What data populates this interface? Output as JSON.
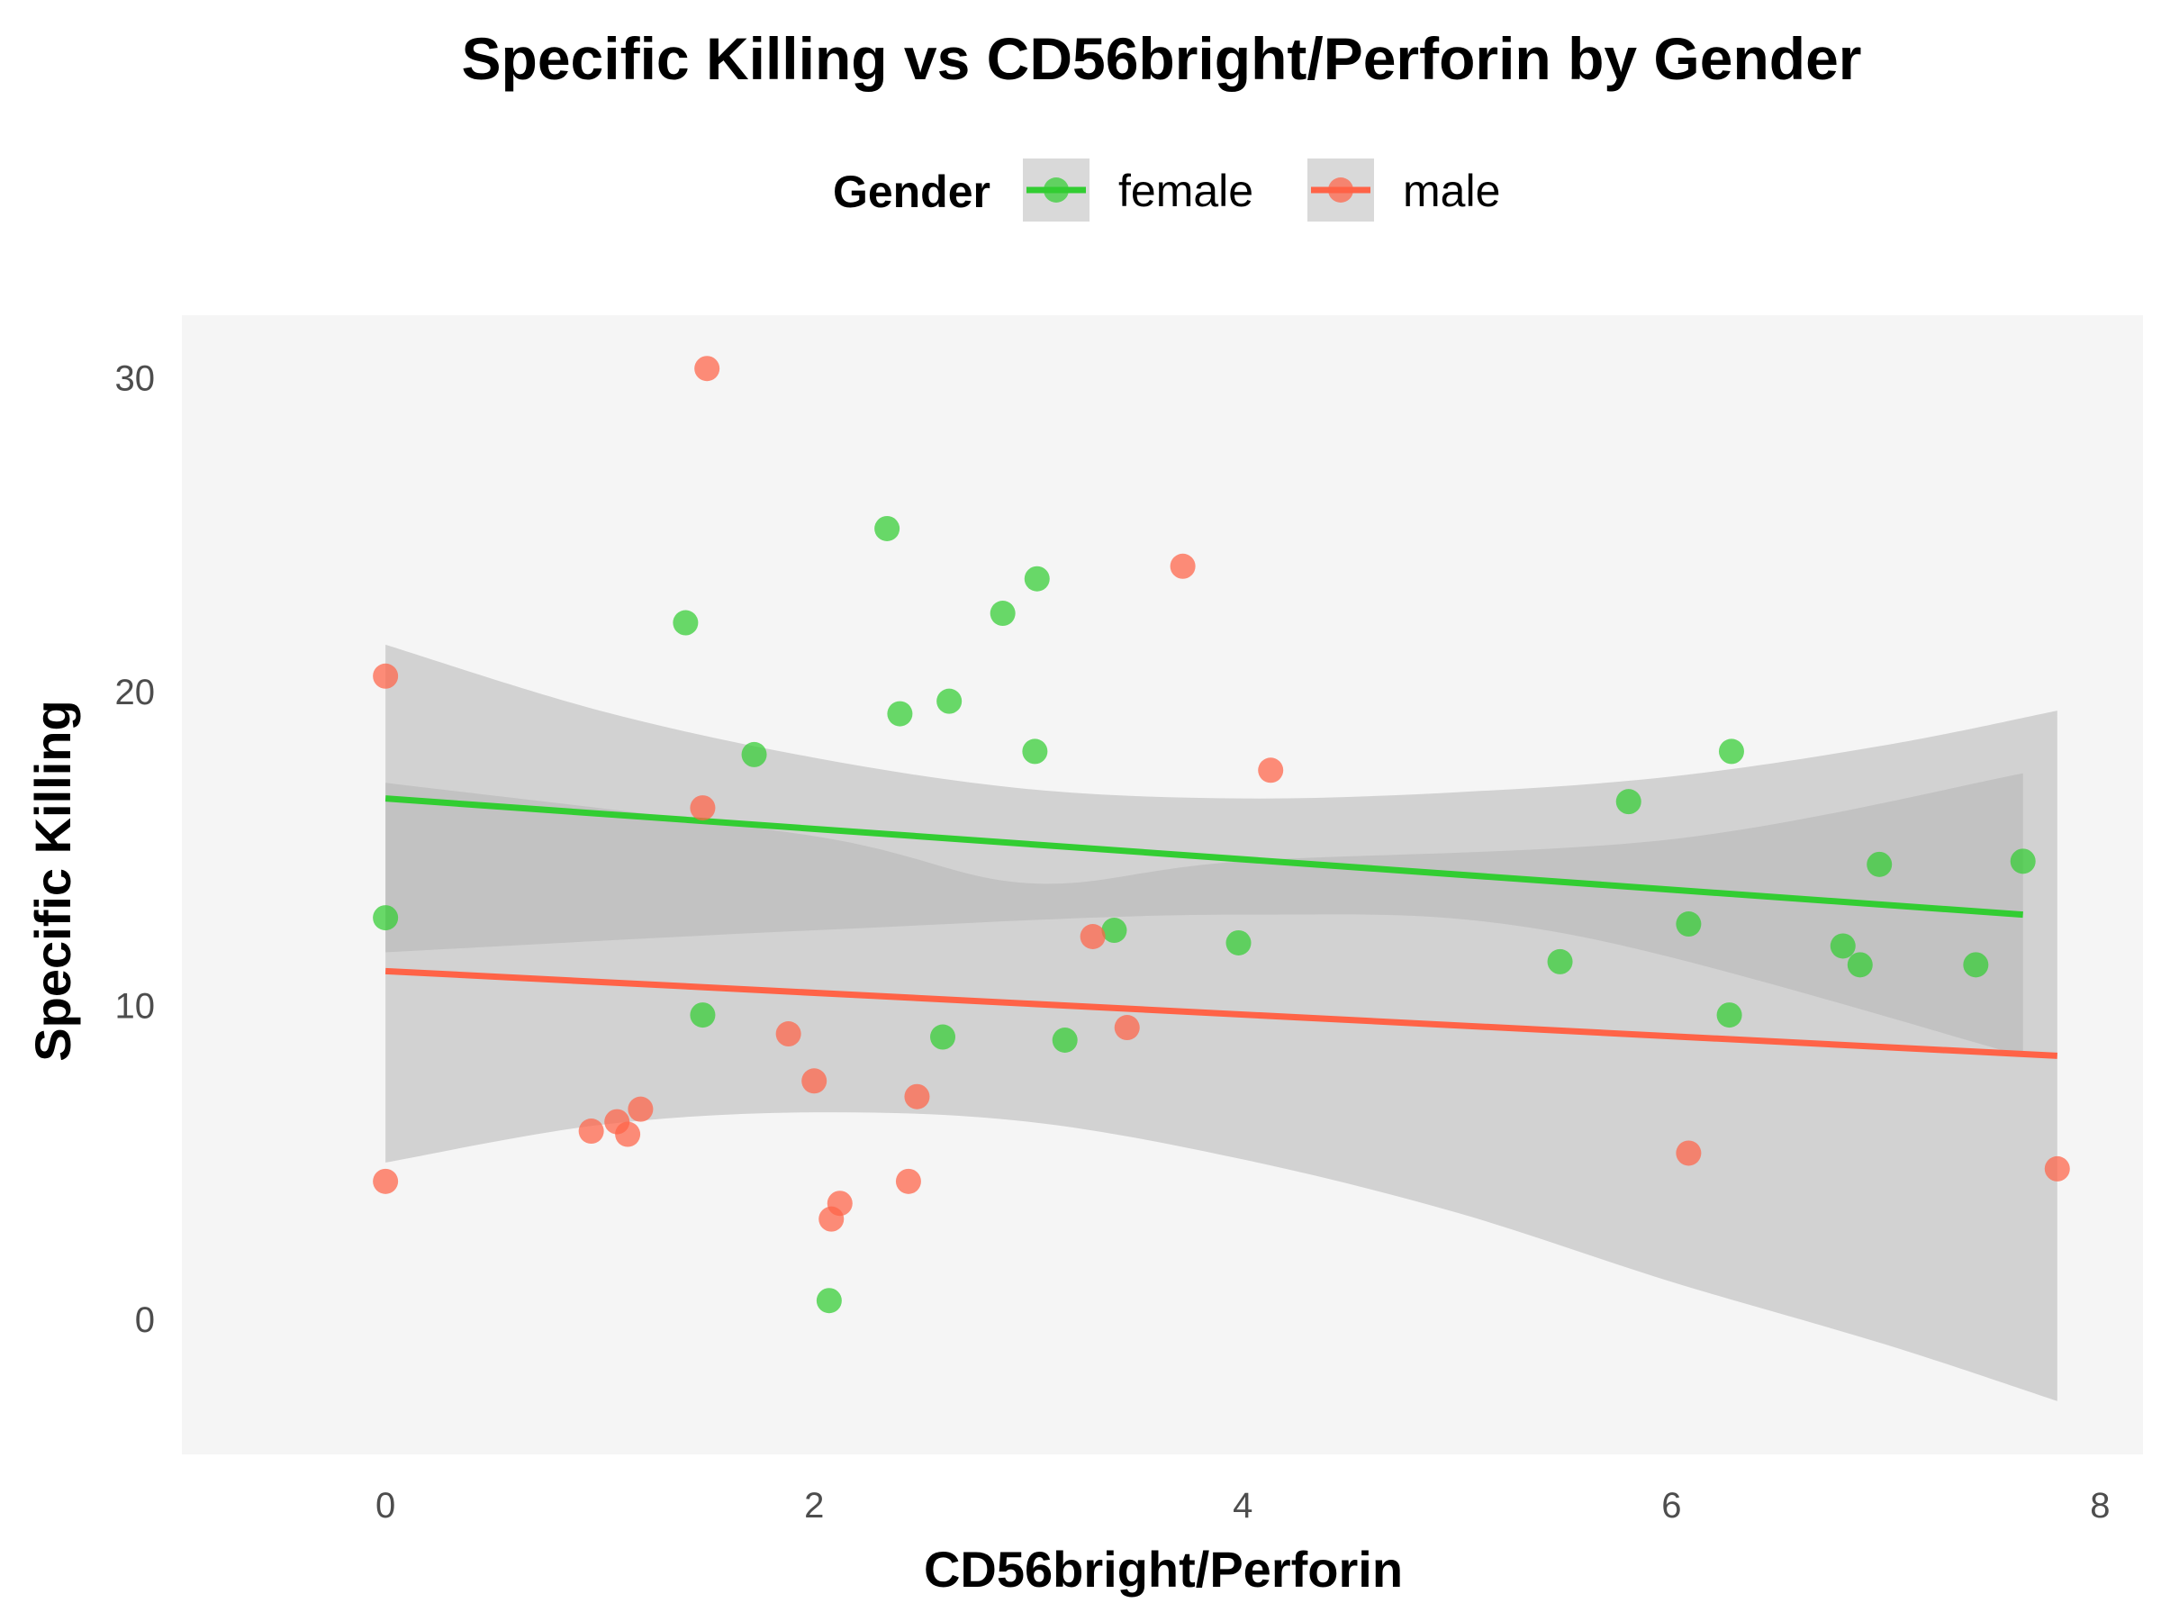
{
  "chart_data": {
    "type": "scatter",
    "title": "Specific Killing vs CD56bright/Perforin by Gender",
    "xlabel": "CD56bright/Perforin",
    "ylabel": "Specific Killing",
    "xlim": [
      -0.95,
      8.2
    ],
    "ylim": [
      -4.3,
      32
    ],
    "x_ticks": [
      0,
      2,
      4,
      6,
      8
    ],
    "y_ticks": [
      0,
      10,
      20,
      30
    ],
    "grid": false,
    "panel_background": "#f5f5f5",
    "legend": {
      "title": "Gender",
      "position": "top",
      "entries": [
        "female",
        "male"
      ]
    },
    "series": [
      {
        "name": "female",
        "color": "#32cd32",
        "points": [
          [
            0.0,
            12.8
          ],
          [
            1.4,
            22.2
          ],
          [
            1.48,
            9.7
          ],
          [
            1.72,
            18.0
          ],
          [
            2.07,
            0.6
          ],
          [
            2.34,
            25.2
          ],
          [
            2.4,
            19.3
          ],
          [
            2.6,
            9.0
          ],
          [
            2.63,
            19.7
          ],
          [
            2.88,
            22.5
          ],
          [
            3.03,
            18.1
          ],
          [
            3.04,
            23.6
          ],
          [
            3.17,
            8.9
          ],
          [
            3.4,
            12.4
          ],
          [
            3.98,
            12.0
          ],
          [
            5.48,
            11.4
          ],
          [
            5.8,
            16.5
          ],
          [
            6.08,
            12.6
          ],
          [
            6.27,
            9.7
          ],
          [
            6.28,
            18.1
          ],
          [
            6.8,
            11.9
          ],
          [
            6.88,
            11.3
          ],
          [
            6.97,
            14.5
          ],
          [
            7.42,
            11.3
          ],
          [
            7.64,
            14.6
          ]
        ],
        "fit": {
          "x": [
            0.0,
            7.64
          ],
          "y": [
            16.6,
            12.9
          ]
        },
        "ci_lower": [
          [
            0.0,
            11.7
          ],
          [
            2.0,
            12.4
          ],
          [
            4.0,
            12.9
          ],
          [
            5.5,
            12.3
          ],
          [
            7.64,
            8.4
          ]
        ],
        "ci_upper": [
          [
            0.0,
            17.1
          ],
          [
            2.0,
            15.4
          ],
          [
            3.0,
            13.9
          ],
          [
            4.0,
            14.6
          ],
          [
            6.0,
            15.3
          ],
          [
            7.64,
            17.4
          ]
        ]
      },
      {
        "name": "male",
        "color": "#ff6347",
        "points": [
          [
            0.0,
            20.5
          ],
          [
            0.0,
            4.4
          ],
          [
            0.96,
            6.0
          ],
          [
            1.08,
            6.3
          ],
          [
            1.13,
            5.9
          ],
          [
            1.19,
            6.7
          ],
          [
            1.48,
            16.3
          ],
          [
            1.5,
            30.3
          ],
          [
            1.88,
            9.1
          ],
          [
            2.0,
            7.6
          ],
          [
            2.08,
            3.2
          ],
          [
            2.12,
            3.7
          ],
          [
            2.44,
            4.4
          ],
          [
            2.48,
            7.1
          ],
          [
            3.3,
            12.2
          ],
          [
            3.46,
            9.3
          ],
          [
            3.72,
            24.0
          ],
          [
            4.13,
            17.5
          ],
          [
            6.08,
            5.3
          ],
          [
            7.8,
            4.8
          ]
        ],
        "fit": {
          "x": [
            0.0,
            7.8
          ],
          "y": [
            11.1,
            8.4
          ]
        },
        "ci_lower": [
          [
            0.0,
            5.0
          ],
          [
            1.0,
            6.2
          ],
          [
            2.0,
            6.6
          ],
          [
            3.0,
            6.3
          ],
          [
            4.0,
            5.1
          ],
          [
            5.0,
            3.4
          ],
          [
            6.0,
            1.2
          ],
          [
            7.0,
            -0.8
          ],
          [
            7.8,
            -2.6
          ]
        ],
        "ci_upper": [
          [
            0.0,
            21.5
          ],
          [
            1.0,
            19.4
          ],
          [
            2.0,
            17.9
          ],
          [
            3.0,
            16.9
          ],
          [
            4.0,
            16.6
          ],
          [
            5.0,
            16.8
          ],
          [
            6.0,
            17.3
          ],
          [
            7.0,
            18.3
          ],
          [
            7.8,
            19.4
          ]
        ]
      }
    ],
    "ci_fill": "#b4b4b4"
  }
}
